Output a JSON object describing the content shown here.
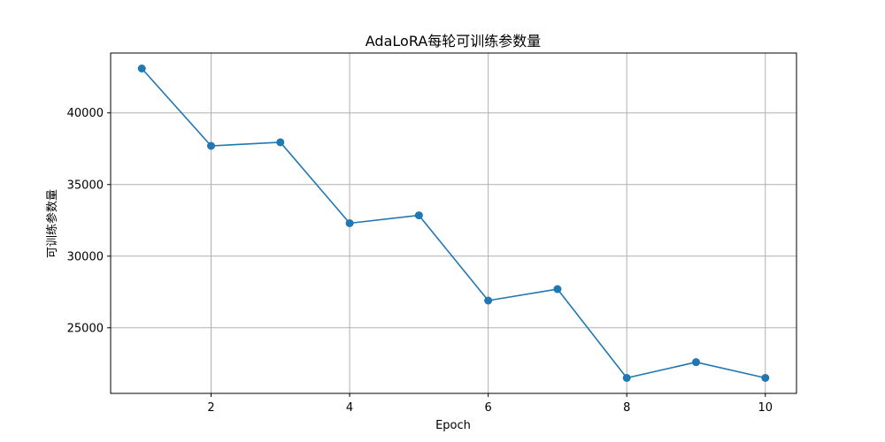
{
  "chart_data": {
    "type": "line",
    "title": "AdaLoRA每轮可训练参数量",
    "xlabel": "Epoch",
    "ylabel": "可训练参数量",
    "x": [
      1,
      2,
      3,
      4,
      5,
      6,
      7,
      8,
      9,
      10
    ],
    "series": [
      {
        "name": "",
        "color": "#1f77b4",
        "marker": "circle",
        "values": [
          43100,
          37700,
          37950,
          32300,
          32850,
          26900,
          27700,
          21500,
          22600,
          21500
        ]
      }
    ],
    "xticks": [
      2,
      4,
      6,
      8,
      10
    ],
    "yticks": [
      25000,
      30000,
      35000,
      40000
    ],
    "xlim": [
      0.55,
      10.45
    ],
    "ylim": [
      20420,
      44180
    ],
    "grid": true,
    "legend": "none"
  }
}
